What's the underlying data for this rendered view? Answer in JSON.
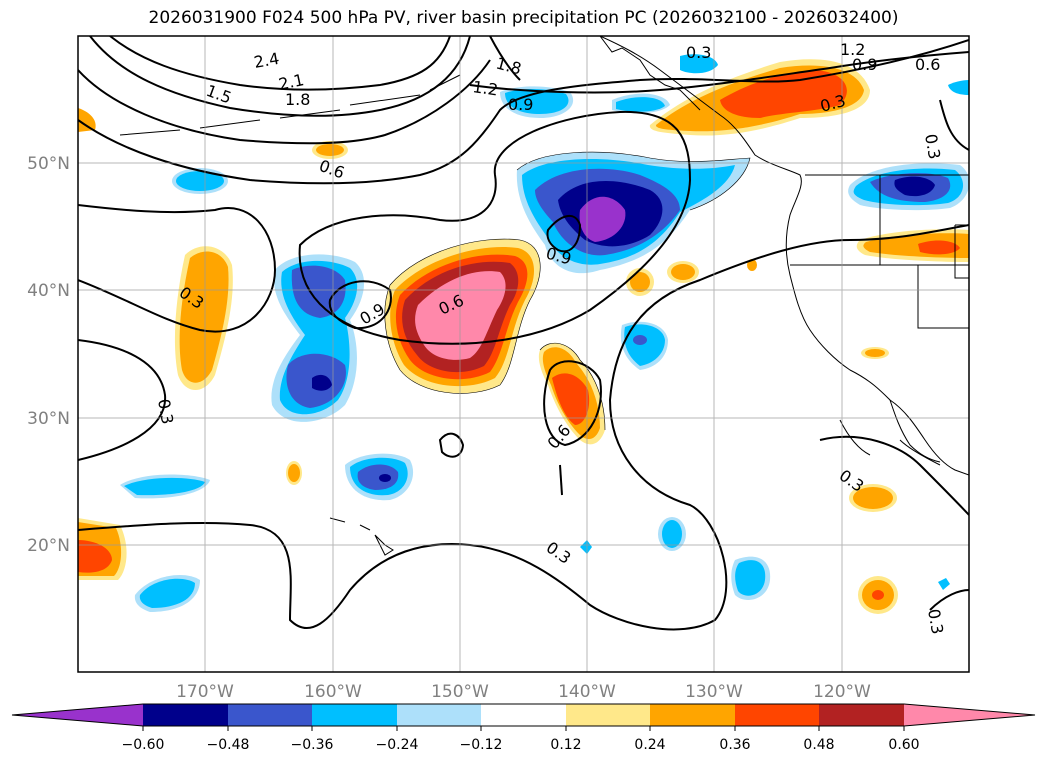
{
  "title": "2026031900 F024 500 hPa PV, river basin precipitation PC (2026032100 - 2026032400)",
  "lat_labels": [
    "50°N",
    "40°N",
    "30°N",
    "20°N"
  ],
  "lon_labels": [
    "170°W",
    "160°W",
    "150°W",
    "140°W",
    "130°W",
    "120°W"
  ],
  "contour_labels": [
    "2.4",
    "2.1",
    "1.8",
    "1.5",
    "1.8",
    "1.2",
    "0.9",
    "0.3",
    "1.2",
    "0.9",
    "0.6",
    "0.3",
    "0.3",
    "0.6",
    "0.9",
    "0.9",
    "0.6",
    "0.3",
    "0.3",
    "0.6",
    "0.3",
    "0.3",
    "0.3"
  ],
  "colorbar": {
    "ticks": [
      "−0.60",
      "−0.48",
      "−0.36",
      "−0.24",
      "−0.12",
      "0.12",
      "0.24",
      "0.36",
      "0.48",
      "0.60"
    ],
    "colors": {
      "lt_m060": "#9932CC",
      "m060_m048": "#00008B",
      "m048_m036": "#3A56CC",
      "m036_m024": "#00BFFF",
      "m024_m012": "#ADE0FA",
      "m012_012": "#FFFFFF",
      "p012_024": "#FFE88A",
      "p024_036": "#FFA500",
      "p036_048": "#FF4500",
      "p048_060": "#B22222",
      "gt_060": "#FF88AA"
    }
  }
}
